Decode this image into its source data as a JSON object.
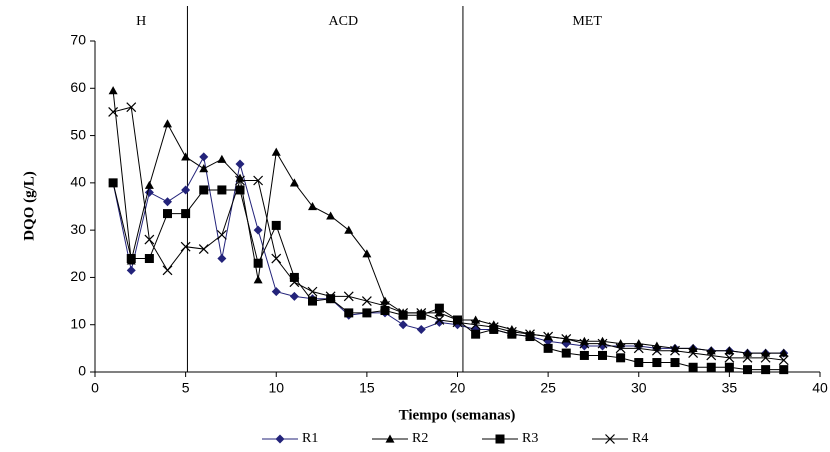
{
  "chart_data": {
    "type": "line",
    "x_label": "Tiempo (semanas)",
    "y_label": "DQO (g/L)",
    "annotations": [
      "H",
      "ACD",
      "MET"
    ],
    "phase_lines": [
      5.1,
      20.3
    ],
    "x": [
      1,
      2,
      3,
      4,
      5,
      6,
      7,
      8,
      9,
      10,
      11,
      12,
      13,
      14,
      15,
      16,
      17,
      18,
      19,
      20,
      21,
      22,
      23,
      24,
      25,
      26,
      27,
      28,
      29,
      30,
      31,
      32,
      33,
      34,
      35,
      36,
      37,
      38
    ],
    "series": [
      {
        "name": "R1",
        "color": "#23237a",
        "marker": "diamond",
        "values": [
          40,
          21.5,
          38,
          36,
          38.5,
          45.5,
          24,
          44,
          30,
          17,
          16,
          15.5,
          15.5,
          12,
          12.5,
          12.5,
          10,
          9,
          10.5,
          10,
          9,
          9,
          8,
          7.5,
          6.5,
          6,
          5.5,
          5.5,
          5.5,
          5.5,
          5,
          5,
          5,
          4.5,
          4.5,
          4,
          4,
          4
        ]
      },
      {
        "name": "R2",
        "color": "#000000",
        "marker": "triangle",
        "values": [
          59.5,
          23.5,
          39.5,
          52.5,
          45.5,
          43,
          45,
          41,
          19.5,
          46.5,
          40,
          35,
          33,
          30,
          25,
          15,
          12.5,
          12.5,
          12.5,
          11,
          11,
          10,
          9,
          8,
          7.5,
          7,
          6.5,
          6.5,
          6,
          6,
          5.5,
          5,
          5,
          4.5,
          4.5,
          4,
          4,
          4
        ]
      },
      {
        "name": "R3",
        "color": "#000000",
        "marker": "square",
        "values": [
          40,
          24,
          24,
          33.5,
          33.5,
          38.5,
          38.5,
          38.5,
          23,
          31,
          20,
          15,
          15.5,
          12.5,
          12.5,
          13,
          12,
          12,
          13.5,
          11,
          8,
          9,
          8,
          7.5,
          5,
          4,
          3.5,
          3.5,
          3,
          2,
          2,
          2,
          1,
          1,
          1,
          0.5,
          0.5,
          0.5
        ]
      },
      {
        "name": "R4",
        "color": "#000000",
        "marker": "cross",
        "values": [
          55,
          56,
          28,
          21.5,
          26.5,
          26,
          29,
          40.5,
          40.5,
          24,
          19,
          17,
          16,
          16,
          15,
          14,
          12.5,
          12.5,
          11,
          10.5,
          10,
          9.5,
          8.5,
          8,
          7.5,
          7,
          6,
          6,
          5,
          5,
          4.5,
          4.5,
          4,
          3.5,
          3,
          3,
          3,
          2.5
        ]
      }
    ],
    "xlim": [
      0,
      40
    ],
    "xticks": [
      0,
      5,
      10,
      15,
      20,
      25,
      30,
      35,
      40
    ],
    "ylim": [
      0,
      70
    ],
    "yticks": [
      0,
      10,
      20,
      30,
      40,
      50,
      60,
      70
    ]
  }
}
